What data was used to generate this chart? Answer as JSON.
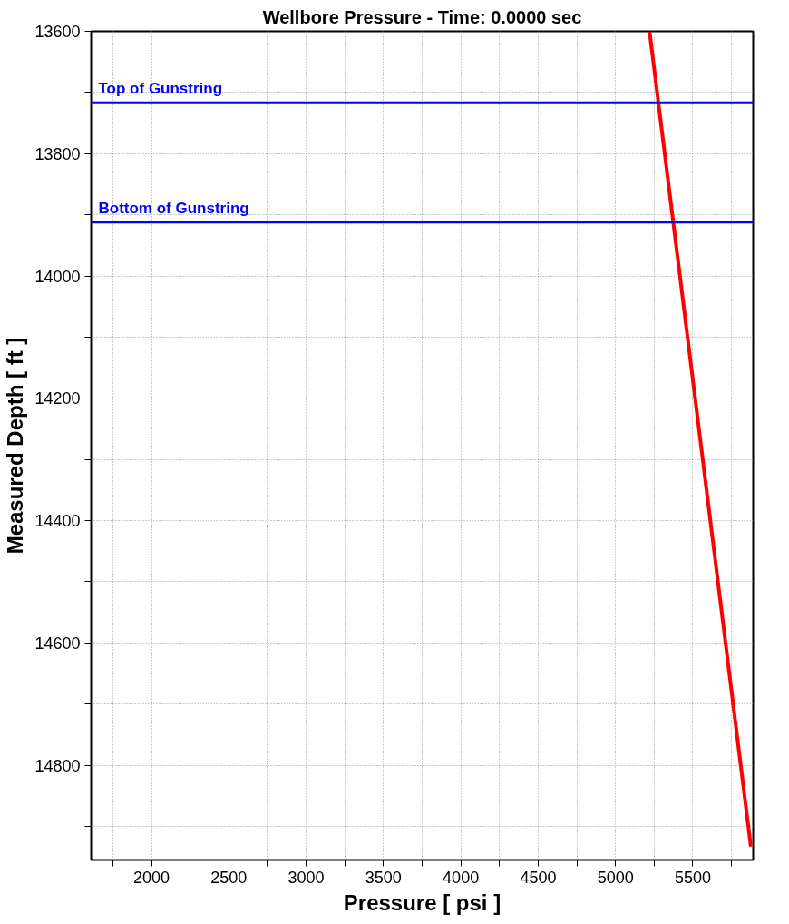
{
  "chart_data": {
    "type": "line",
    "title": "Wellbore Pressure - Time: 0.0000 sec",
    "xlabel": "Pressure [ psi ]",
    "ylabel": "Measured Depth [ ft ]",
    "series": [
      {
        "color": "#ff0000",
        "x": [
          5220,
          5875
        ],
        "values": [
          13600,
          14933
        ]
      }
    ],
    "xlim": [
      1610,
      5890
    ],
    "ylim": [
      14955,
      13600
    ],
    "xticks": [
      {
        "value": 1750,
        "label": null
      },
      2000,
      {
        "value": 2250,
        "label": null
      },
      2500,
      {
        "value": 2750,
        "label": null
      },
      3000,
      {
        "value": 3250,
        "label": null
      },
      3500,
      {
        "value": 3750,
        "label": null
      },
      4000,
      {
        "value": 4250,
        "label": null
      },
      4500,
      {
        "value": 4750,
        "label": null
      },
      5000,
      {
        "value": 5250,
        "label": null
      },
      5500,
      {
        "value": 5750,
        "label": null
      }
    ],
    "yticks": [
      13600,
      {
        "value": 13700,
        "label": null
      },
      13800,
      {
        "value": 13900,
        "label": null
      },
      14000,
      {
        "value": 14100,
        "label": null
      },
      14200,
      {
        "value": 14300,
        "label": null
      },
      14400,
      {
        "value": 14500,
        "label": null
      },
      14600,
      {
        "value": 14700,
        "label": null
      },
      14800,
      {
        "value": 14900,
        "label": null
      }
    ],
    "ref_lines": [
      {
        "axis": "y",
        "value": 13717,
        "label": "Top of Gunstring",
        "color": "#0000ff"
      },
      {
        "axis": "y",
        "value": 13912,
        "label": "Bottom of Gunstring",
        "color": "#0000ff"
      }
    ],
    "grid": true,
    "marker": "none",
    "line_style": "solid"
  }
}
